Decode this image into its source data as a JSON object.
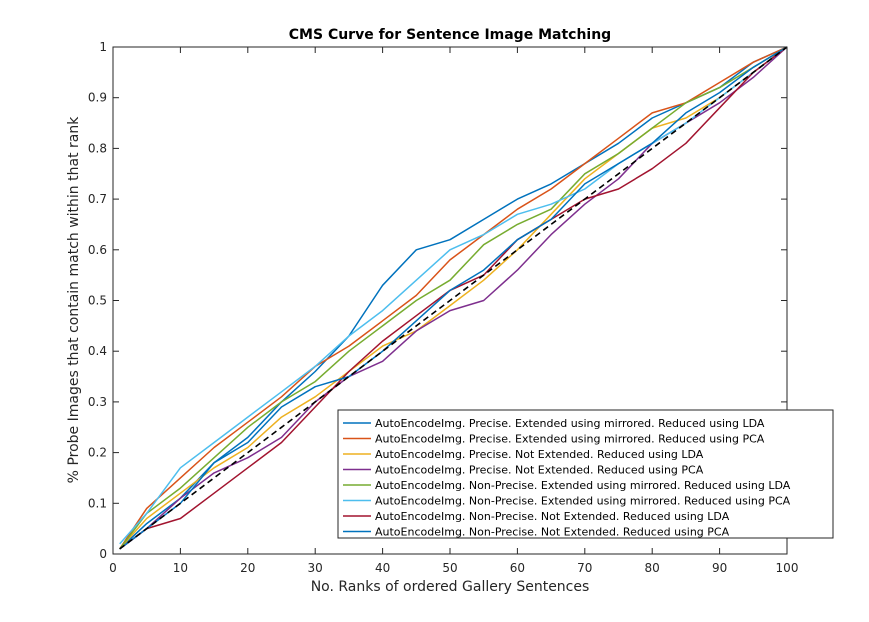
{
  "chart_data": {
    "type": "line",
    "title": "CMS Curve for Sentence Image Matching",
    "xlabel": "No. Ranks of ordered Gallery Sentences",
    "ylabel": "% Probe Images that contain match within that rank",
    "xlim": [
      0,
      100
    ],
    "ylim": [
      0,
      1
    ],
    "xticks": [
      "0",
      "10",
      "20",
      "30",
      "40",
      "50",
      "60",
      "70",
      "80",
      "90",
      "100"
    ],
    "yticks": [
      "0",
      "0.1",
      "0.2",
      "0.3",
      "0.4",
      "0.5",
      "0.6",
      "0.7",
      "0.8",
      "0.9",
      "1"
    ],
    "grid": false,
    "legend_position": "bottom-right",
    "x": [
      1,
      5,
      10,
      15,
      20,
      25,
      30,
      35,
      40,
      45,
      50,
      55,
      60,
      65,
      70,
      75,
      80,
      85,
      90,
      95,
      100
    ],
    "series": [
      {
        "name": "AutoEncodeImg. Precise. Extended using mirrored. Reduced using LDA",
        "color": "#0072BD",
        "dash": "",
        "values": [
          0.01,
          0.06,
          0.11,
          0.18,
          0.23,
          0.3,
          0.36,
          0.43,
          0.53,
          0.6,
          0.62,
          0.66,
          0.7,
          0.73,
          0.77,
          0.81,
          0.86,
          0.89,
          0.92,
          0.97,
          1.0
        ]
      },
      {
        "name": "AutoEncodeImg. Precise. Extended using mirrored. Reduced using PCA",
        "color": "#D95319",
        "dash": "",
        "values": [
          0.01,
          0.09,
          0.15,
          0.21,
          0.26,
          0.31,
          0.37,
          0.41,
          0.46,
          0.51,
          0.58,
          0.63,
          0.68,
          0.72,
          0.77,
          0.82,
          0.87,
          0.89,
          0.93,
          0.97,
          1.0
        ]
      },
      {
        "name": "AutoEncodeImg. Precise. Not Extended. Reduced using LDA",
        "color": "#EDB120",
        "dash": "",
        "values": [
          0.01,
          0.07,
          0.12,
          0.17,
          0.21,
          0.27,
          0.31,
          0.36,
          0.41,
          0.44,
          0.49,
          0.54,
          0.6,
          0.67,
          0.74,
          0.79,
          0.84,
          0.86,
          0.9,
          0.95,
          1.0
        ]
      },
      {
        "name": "AutoEncodeImg. Precise. Not Extended. Reduced using PCA",
        "color": "#7E2F8E",
        "dash": "",
        "values": [
          0.01,
          0.05,
          0.11,
          0.16,
          0.19,
          0.23,
          0.3,
          0.35,
          0.38,
          0.44,
          0.48,
          0.5,
          0.56,
          0.63,
          0.69,
          0.74,
          0.81,
          0.85,
          0.89,
          0.94,
          1.0
        ]
      },
      {
        "name": "AutoEncodeImg. Non-Precise. Extended using mirrored. Reduced using LDA",
        "color": "#77AC30",
        "dash": "",
        "values": [
          0.01,
          0.08,
          0.13,
          0.19,
          0.25,
          0.3,
          0.34,
          0.4,
          0.45,
          0.5,
          0.54,
          0.61,
          0.65,
          0.68,
          0.75,
          0.79,
          0.84,
          0.89,
          0.92,
          0.96,
          1.0
        ]
      },
      {
        "name": "AutoEncodeImg. Non-Precise. Extended using mirrored. Reduced using PCA",
        "color": "#4DBEEE",
        "dash": "",
        "values": [
          0.02,
          0.08,
          0.17,
          0.22,
          0.27,
          0.32,
          0.37,
          0.43,
          0.48,
          0.54,
          0.6,
          0.63,
          0.67,
          0.69,
          0.72,
          0.77,
          0.81,
          0.85,
          0.9,
          0.95,
          1.0
        ]
      },
      {
        "name": "AutoEncodeImg. Non-Precise. Not Extended. Reduced using LDA",
        "color": "#A2142F",
        "dash": "",
        "values": [
          0.01,
          0.05,
          0.07,
          0.12,
          0.17,
          0.22,
          0.29,
          0.36,
          0.42,
          0.47,
          0.52,
          0.55,
          0.62,
          0.66,
          0.7,
          0.72,
          0.76,
          0.81,
          0.88,
          0.95,
          1.0
        ]
      },
      {
        "name": "AutoEncodeImg. Non-Precise. Not Extended. Reduced using PCA",
        "color": "#0072BD",
        "dash": "",
        "values": [
          0.01,
          0.05,
          0.1,
          0.18,
          0.22,
          0.29,
          0.33,
          0.35,
          0.4,
          0.46,
          0.52,
          0.56,
          0.62,
          0.66,
          0.73,
          0.77,
          0.81,
          0.87,
          0.91,
          0.96,
          1.0
        ]
      },
      {
        "name": "",
        "color": "#000000",
        "dash": "6,4",
        "values": [
          0.01,
          0.05,
          0.1,
          0.15,
          0.2,
          0.25,
          0.3,
          0.35,
          0.4,
          0.45,
          0.5,
          0.55,
          0.6,
          0.65,
          0.7,
          0.75,
          0.8,
          0.85,
          0.9,
          0.95,
          1.0
        ]
      }
    ]
  }
}
